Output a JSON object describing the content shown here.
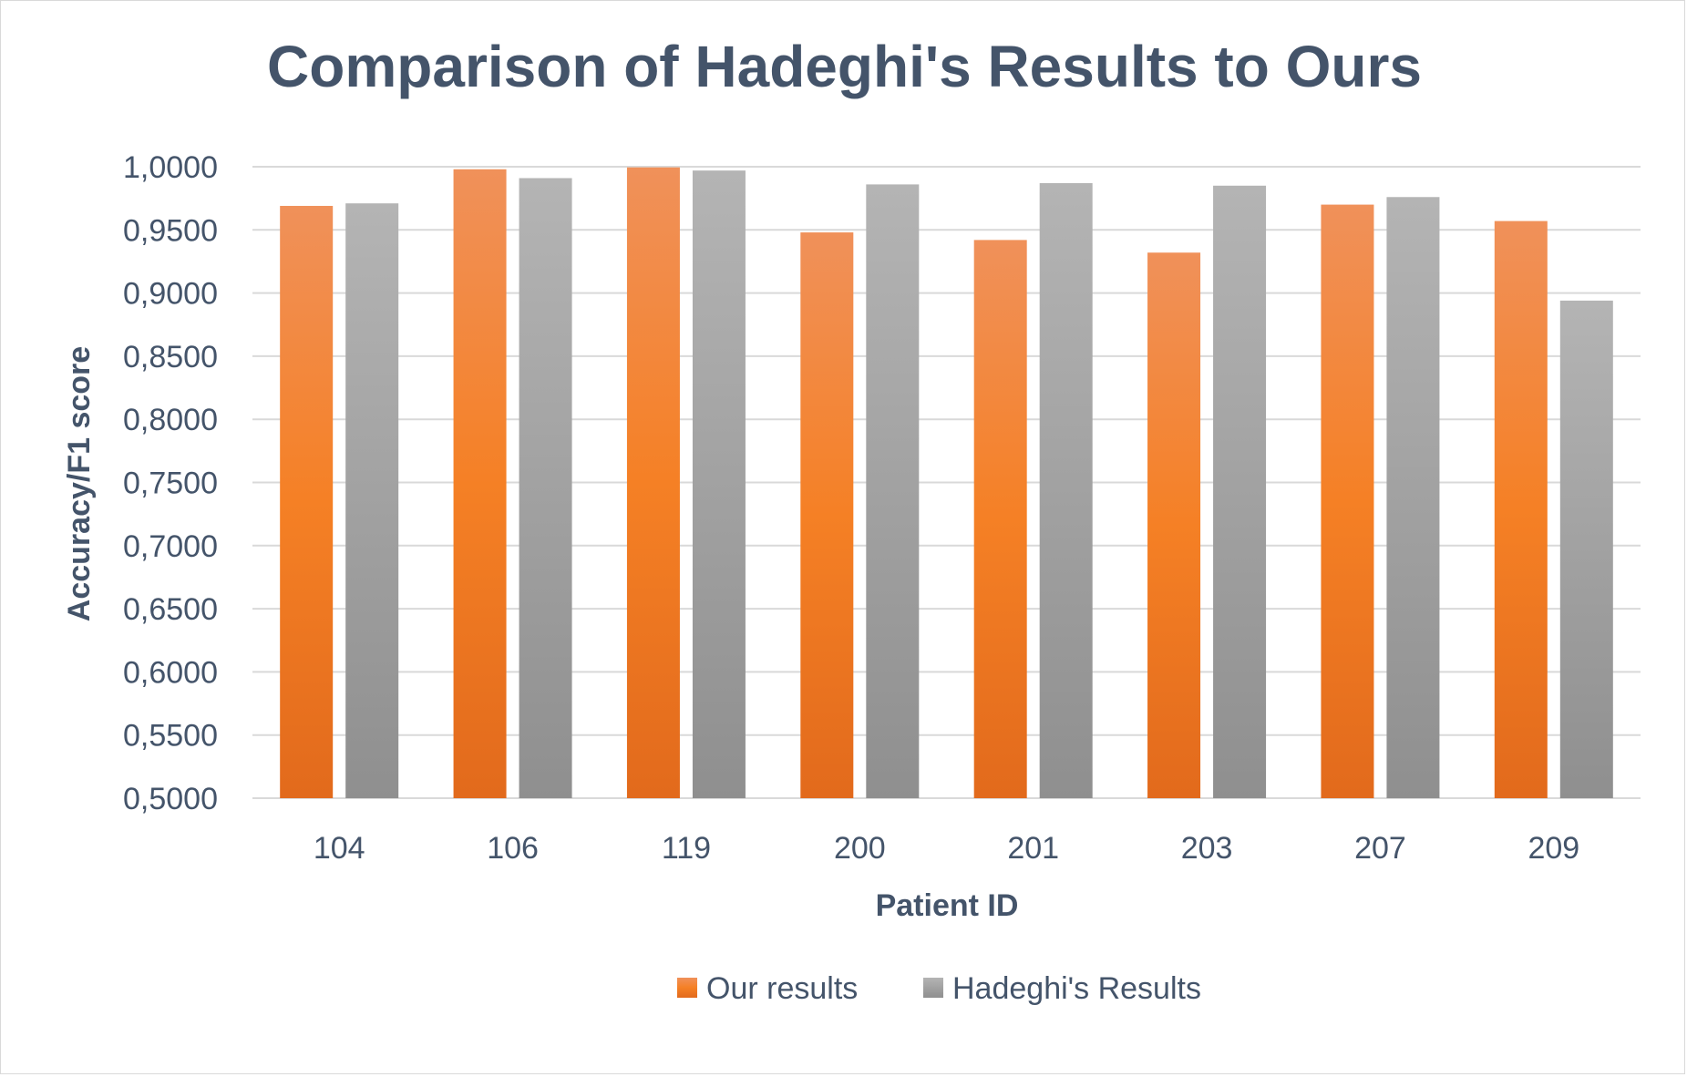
{
  "chart_data": {
    "type": "bar",
    "title": "Comparison of Hadeghi's Results to Ours",
    "xlabel": "Patient ID",
    "ylabel": "Accuracy/F1 score",
    "categories": [
      "104",
      "106",
      "119",
      "200",
      "201",
      "203",
      "207",
      "209"
    ],
    "series": [
      {
        "name": "Our results",
        "color": "#ed7d31",
        "values": [
          0.969,
          0.998,
          0.9995,
          0.948,
          0.942,
          0.932,
          0.97,
          0.957
        ]
      },
      {
        "name": "Hadeghi's Results",
        "color": "#a5a5a5",
        "values": [
          0.971,
          0.991,
          0.997,
          0.986,
          0.987,
          0.985,
          0.976,
          0.894
        ]
      }
    ],
    "ylim": [
      0.5,
      1.0
    ],
    "ytick_step": 0.05,
    "ytick_labels": [
      "0,5000",
      "0,5500",
      "0,6000",
      "0,6500",
      "0,7000",
      "0,7500",
      "0,8000",
      "0,8500",
      "0,9000",
      "0,9500",
      "1,0000"
    ],
    "grid": true,
    "legend_position": "bottom"
  }
}
